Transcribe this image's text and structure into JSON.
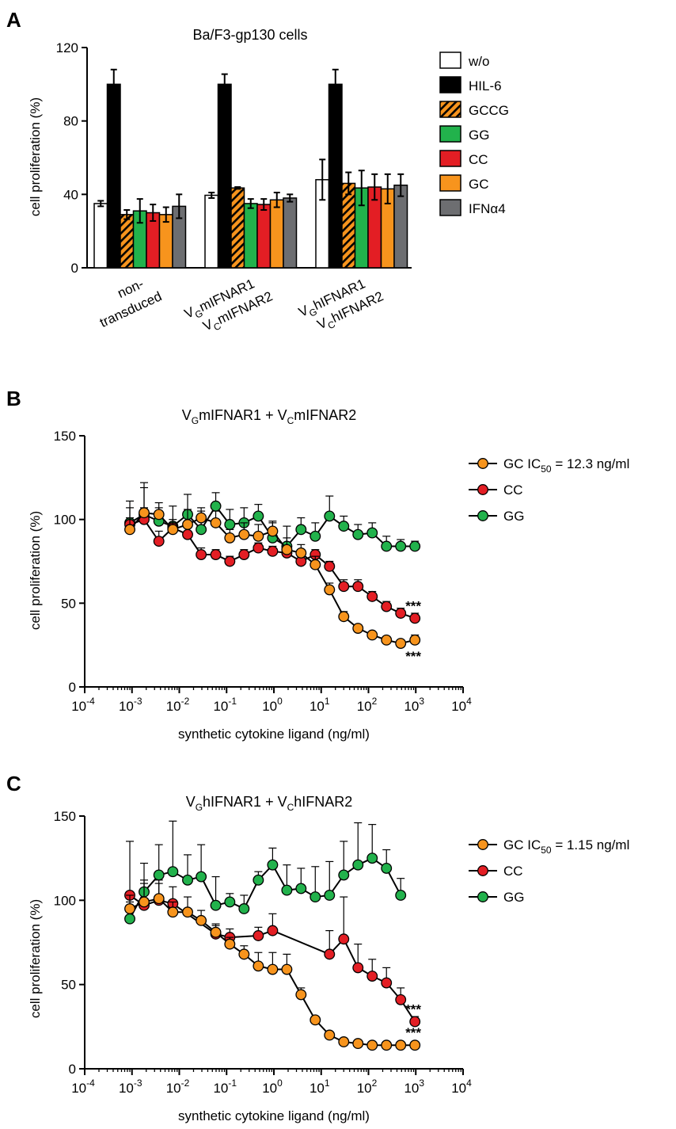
{
  "panels": {
    "A": {
      "letter": "A"
    },
    "B": {
      "letter": "B"
    },
    "C": {
      "letter": "C"
    }
  },
  "colors": {
    "wo": "#ffffff",
    "HIL6": "#000000",
    "GCCG": "#f7941d",
    "GG": "#22b24c",
    "CC": "#e31e24",
    "GC": "#f7941d",
    "IFNa4": "#6d6e71"
  },
  "chart_data": [
    {
      "id": "A",
      "type": "bar",
      "title": "Ba/F3-gp130 cells",
      "ylabel": "cell proliferation (%)",
      "ylim": [
        0,
        120
      ],
      "yticks": [
        0,
        40,
        80,
        120
      ],
      "groups": [
        {
          "label_lines": [
            "non-",
            "transduced"
          ]
        },
        {
          "label_lines": [
            "V_GmIFNAR1",
            "V_CmIFNAR2"
          ]
        },
        {
          "label_lines": [
            "V_GhIFNAR1",
            "V_ChIFNAR2"
          ]
        }
      ],
      "series": [
        {
          "name": "w/o",
          "color": "#ffffff",
          "pattern": "none",
          "values": [
            35,
            39.5,
            48
          ],
          "errors": [
            1.5,
            1.5,
            11
          ]
        },
        {
          "name": "HIL-6",
          "color": "#000000",
          "pattern": "none",
          "values": [
            100,
            100,
            100
          ],
          "errors": [
            8,
            5.5,
            8
          ]
        },
        {
          "name": "GCCG",
          "color": "#f7941d",
          "pattern": "hatch",
          "values": [
            29,
            43.5,
            46
          ],
          "errors": [
            2.5,
            0.5,
            6
          ]
        },
        {
          "name": "GG",
          "color": "#22b24c",
          "pattern": "none",
          "values": [
            31,
            35,
            43.5
          ],
          "errors": [
            6.5,
            2.5,
            9.5
          ]
        },
        {
          "name": "CC",
          "color": "#e31e24",
          "pattern": "none",
          "values": [
            30,
            34.5,
            44
          ],
          "errors": [
            4.5,
            3,
            7
          ]
        },
        {
          "name": "GC",
          "color": "#f7941d",
          "pattern": "none",
          "values": [
            29,
            37,
            43
          ],
          "errors": [
            4,
            4,
            8
          ]
        },
        {
          "name": "IFNα4",
          "color": "#6d6e71",
          "pattern": "none",
          "values": [
            33.5,
            38,
            45
          ],
          "errors": [
            6.5,
            2,
            6
          ]
        }
      ]
    },
    {
      "id": "B",
      "type": "line",
      "title_parts": [
        "V",
        "G",
        "mIFNAR1 + V",
        "C",
        "mIFNAR2"
      ],
      "ylabel": "cell proliferation (%)",
      "xlabel": "synthetic cytokine ligand (ng/ml)",
      "xscale": "log",
      "xlim_exp": [
        -4,
        4
      ],
      "ylim": [
        0,
        150
      ],
      "yticks": [
        0,
        50,
        100,
        150
      ],
      "x": [
        0.0009,
        0.0018,
        0.0037,
        0.0073,
        0.015,
        0.029,
        0.059,
        0.117,
        0.234,
        0.469,
        0.94,
        1.88,
        3.75,
        7.5,
        15,
        30,
        60,
        120,
        240,
        480,
        960
      ],
      "series": [
        {
          "name": "GC",
          "legend_parts": [
            "GC IC",
            "50",
            " = 12.3 ng/ml"
          ],
          "color": "#f7941d",
          "values": [
            94,
            104,
            103,
            94,
            97,
            101,
            98,
            89,
            91,
            90,
            93,
            82,
            80,
            73,
            58,
            42,
            35,
            31,
            28,
            26,
            28
          ],
          "errors": [
            7,
            18,
            7,
            4,
            9,
            4,
            7,
            5,
            7,
            7,
            6,
            7,
            5,
            5,
            4,
            3,
            2,
            2,
            2,
            2,
            3
          ]
        },
        {
          "name": "CC",
          "legend_parts": [
            "CC"
          ],
          "color": "#e31e24",
          "values": [
            97,
            100,
            87,
            95,
            91,
            79,
            79,
            75,
            79,
            83,
            81,
            80,
            75,
            79,
            72,
            60,
            60,
            54,
            48,
            44,
            41
          ],
          "errors": [
            10,
            7,
            6,
            5,
            5,
            4,
            3,
            3,
            3,
            3,
            3,
            3,
            3,
            3,
            3,
            4,
            4,
            3,
            3,
            3,
            3
          ]
        },
        {
          "name": "GG",
          "legend_parts": [
            "GG"
          ],
          "color": "#22b24c",
          "values": [
            98,
            103,
            99,
            96,
            103,
            94,
            108,
            97,
            98,
            102,
            89,
            84,
            94,
            90,
            102,
            96,
            91,
            92,
            84,
            84,
            84
          ],
          "errors": [
            13,
            16,
            8,
            12,
            12,
            13,
            8,
            9,
            9,
            7,
            9,
            12,
            7,
            8,
            12,
            6,
            6,
            6,
            6,
            4,
            3
          ]
        }
      ],
      "annotations": [
        "***",
        "***"
      ]
    },
    {
      "id": "C",
      "type": "line",
      "title_parts": [
        "V",
        "G",
        "hIFNAR1 + V",
        "C",
        "hIFNAR2"
      ],
      "ylabel": "cell proliferation (%)",
      "xlabel": "synthetic cytokine ligand (ng/ml)",
      "xscale": "log",
      "xlim_exp": [
        -4,
        4
      ],
      "ylim": [
        0,
        150
      ],
      "yticks": [
        0,
        50,
        100,
        150
      ],
      "x": [
        0.0009,
        0.0018,
        0.0037,
        0.0073,
        0.015,
        0.029,
        0.059,
        0.117,
        0.234,
        0.469,
        0.94,
        1.88,
        3.75,
        7.5,
        15,
        30,
        60,
        120,
        240,
        480,
        960
      ],
      "series": [
        {
          "name": "GC",
          "legend_parts": [
            "GC IC",
            "50",
            " = 1.15 ng/ml"
          ],
          "color": "#f7941d",
          "values": [
            95,
            99,
            101,
            93,
            93,
            88,
            81,
            74,
            68,
            61,
            59,
            59,
            44,
            29,
            20,
            16,
            15,
            14,
            14,
            14,
            14
          ],
          "errors": [
            8,
            13,
            9,
            6,
            9,
            6,
            5,
            4,
            5,
            8,
            10,
            9,
            4,
            2,
            2,
            1,
            1,
            1,
            1,
            1,
            1
          ]
        },
        {
          "name": "CC",
          "legend_parts": [
            "CC"
          ],
          "color": "#e31e24",
          "values": [
            103,
            97,
            100,
            98,
            null,
            null,
            80,
            78,
            null,
            79,
            82,
            null,
            null,
            null,
            68,
            77,
            60,
            55,
            51,
            41,
            28
          ],
          "errors": [
            32,
            13,
            12,
            10,
            0,
            0,
            5,
            5,
            0,
            5,
            10,
            0,
            0,
            0,
            14,
            25,
            14,
            10,
            9,
            7,
            3
          ]
        },
        {
          "name": "GG",
          "legend_parts": [
            "GG"
          ],
          "color": "#22b24c",
          "values": [
            89,
            105,
            115,
            117,
            112,
            114,
            97,
            99,
            95,
            112,
            121,
            106,
            107,
            102,
            103,
            115,
            121,
            125,
            119,
            103,
            null
          ],
          "errors": [
            10,
            17,
            18,
            30,
            15,
            19,
            17,
            5,
            8,
            5,
            10,
            15,
            12,
            18,
            20,
            20,
            25,
            20,
            11,
            10,
            0
          ]
        }
      ],
      "annotations": [
        "***",
        "***"
      ]
    }
  ]
}
